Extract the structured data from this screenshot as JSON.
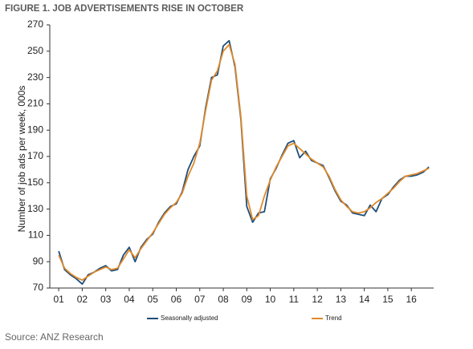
{
  "chart_data": {
    "type": "line",
    "title": "FIGURE 1. JOB ADVERTISEMENTS RISE IN OCTOBER",
    "ylabel": "Number of job ads per week, 000s",
    "source": "Source: ANZ Research",
    "x": [
      1.0,
      1.25,
      1.5,
      1.75,
      2.0,
      2.25,
      2.5,
      2.75,
      3.0,
      3.25,
      3.5,
      3.75,
      4.0,
      4.25,
      4.5,
      4.75,
      5.0,
      5.25,
      5.5,
      5.75,
      6.0,
      6.25,
      6.5,
      6.75,
      7.0,
      7.25,
      7.5,
      7.75,
      8.0,
      8.25,
      8.5,
      8.75,
      9.0,
      9.25,
      9.5,
      9.75,
      10.0,
      10.25,
      10.5,
      10.75,
      11.0,
      11.25,
      11.5,
      11.75,
      12.0,
      12.25,
      12.5,
      12.75,
      13.0,
      13.25,
      13.5,
      13.75,
      14.0,
      14.25,
      14.5,
      14.75,
      15.0,
      15.25,
      15.5,
      15.75,
      16.0,
      16.25,
      16.5,
      16.75
    ],
    "series": [
      {
        "name": "Seasonally adjusted",
        "color": "#1f4e79",
        "values": [
          98,
          84,
          80,
          77,
          73,
          80,
          82,
          85,
          87,
          83,
          84,
          95,
          101,
          90,
          101,
          107,
          111,
          120,
          127,
          132,
          134,
          143,
          160,
          170,
          178,
          207,
          230,
          232,
          254,
          258,
          238,
          198,
          132,
          120,
          127,
          128,
          153,
          161,
          171,
          180,
          182,
          169,
          174,
          167,
          165,
          163,
          154,
          144,
          136,
          133,
          127,
          126,
          125,
          133,
          128,
          138,
          141,
          147,
          152,
          155,
          155,
          156,
          158,
          162
        ]
      },
      {
        "name": "Trend",
        "color": "#e08a2b",
        "values": [
          95,
          85,
          81,
          78,
          76,
          79,
          82,
          84,
          86,
          84,
          85,
          92,
          99,
          93,
          100,
          106,
          112,
          119,
          126,
          131,
          135,
          142,
          155,
          165,
          180,
          205,
          228,
          235,
          250,
          255,
          240,
          200,
          140,
          122,
          125,
          140,
          152,
          162,
          170,
          178,
          180,
          176,
          172,
          168,
          165,
          162,
          155,
          145,
          137,
          132,
          128,
          127,
          128,
          131,
          135,
          138,
          142,
          146,
          151,
          155,
          156,
          157,
          159,
          161
        ]
      }
    ],
    "xlim": [
      0.62,
      16.95
    ],
    "xticks": [
      {
        "value": 1,
        "label": "01"
      },
      {
        "value": 2,
        "label": "02"
      },
      {
        "value": 3,
        "label": "03"
      },
      {
        "value": 4,
        "label": "04"
      },
      {
        "value": 5,
        "label": "05"
      },
      {
        "value": 6,
        "label": "06"
      },
      {
        "value": 7,
        "label": "07"
      },
      {
        "value": 8,
        "label": "08"
      },
      {
        "value": 9,
        "label": "09"
      },
      {
        "value": 10,
        "label": "10"
      },
      {
        "value": 11,
        "label": "11"
      },
      {
        "value": 12,
        "label": "12"
      },
      {
        "value": 13,
        "label": "13"
      },
      {
        "value": 14,
        "label": "14"
      },
      {
        "value": 15,
        "label": "15"
      },
      {
        "value": 16,
        "label": "16"
      }
    ],
    "ylim": [
      70,
      270
    ],
    "yticks": [
      70,
      90,
      110,
      130,
      150,
      170,
      190,
      210,
      230,
      250,
      270
    ],
    "grid": false,
    "legend": "bottom"
  }
}
